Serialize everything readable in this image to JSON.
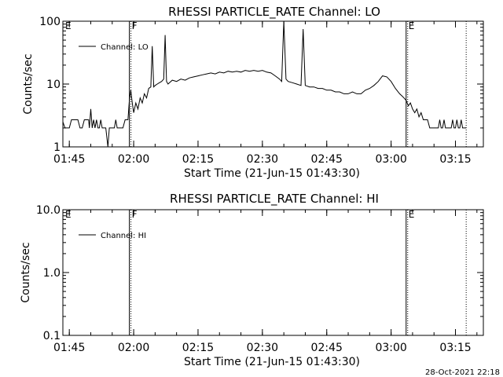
{
  "footer": {
    "timestamp": "28-Oct-2021 22:18"
  },
  "chart_data": [
    {
      "type": "line",
      "title": "RHESSI PARTICLE_RATE Channel: LO",
      "xlabel": "Start Time (21-Jun-15 01:43:30)",
      "ylabel": "Counts/sec",
      "yscale": "log",
      "xlim": [
        "01:43:30",
        "03:21:30"
      ],
      "ylim": [
        1,
        100
      ],
      "x_ticks": [
        "01:45",
        "02:00",
        "02:15",
        "02:30",
        "02:45",
        "03:00",
        "03:15"
      ],
      "y_ticks": [
        "1",
        "10",
        "100"
      ],
      "legend": {
        "placement": "top-left",
        "entries": [
          "Channel: LO"
        ]
      },
      "markers": [
        {
          "label": "E",
          "time": "01:43:30",
          "line": "none"
        },
        {
          "label": "F",
          "time": "01:59:00",
          "line": "solid"
        },
        {
          "label": "E",
          "time": "03:03:30",
          "line": "solid"
        },
        {
          "label": "",
          "time": "03:17:30",
          "line": "dotted"
        }
      ],
      "series": [
        {
          "name": "Channel: LO",
          "color": "#000000",
          "points": [
            [
              "01:43:30",
              2.5
            ],
            [
              "01:44:00",
              2.0
            ],
            [
              "01:45:00",
              2.0
            ],
            [
              "01:45:30",
              2.7
            ],
            [
              "01:47:00",
              2.7
            ],
            [
              "01:47:30",
              2.0
            ],
            [
              "01:48:00",
              2.0
            ],
            [
              "01:48:30",
              2.7
            ],
            [
              "01:49:30",
              2.7
            ],
            [
              "01:49:40",
              2.0
            ],
            [
              "01:50:00",
              4.0
            ],
            [
              "01:50:20",
              2.0
            ],
            [
              "01:50:40",
              2.7
            ],
            [
              "01:51:00",
              2.0
            ],
            [
              "01:51:20",
              2.7
            ],
            [
              "01:51:40",
              2.0
            ],
            [
              "01:52:00",
              2.0
            ],
            [
              "01:52:20",
              2.7
            ],
            [
              "01:52:40",
              2.0
            ],
            [
              "01:53:30",
              2.0
            ],
            [
              "01:54:00",
              1.0
            ],
            [
              "01:54:20",
              2.0
            ],
            [
              "01:55:30",
              2.0
            ],
            [
              "01:55:50",
              2.7
            ],
            [
              "01:56:10",
              2.0
            ],
            [
              "01:57:30",
              2.0
            ],
            [
              "01:58:00",
              2.7
            ],
            [
              "01:58:40",
              2.7
            ],
            [
              "01:59:00",
              5.5
            ],
            [
              "01:59:20",
              8.0
            ],
            [
              "01:59:40",
              5.0
            ],
            [
              "02:00:00",
              3.5
            ],
            [
              "02:00:30",
              5.0
            ],
            [
              "02:01:00",
              4.0
            ],
            [
              "02:01:30",
              6.0
            ],
            [
              "02:02:00",
              5.0
            ],
            [
              "02:02:30",
              7.0
            ],
            [
              "02:03:00",
              6.0
            ],
            [
              "02:03:30",
              8.5
            ],
            [
              "02:04:00",
              9.0
            ],
            [
              "02:04:20",
              40.0
            ],
            [
              "02:04:40",
              9.0
            ],
            [
              "02:05:00",
              9.5
            ],
            [
              "02:05:30",
              10.0
            ],
            [
              "02:06:00",
              10.5
            ],
            [
              "02:06:30",
              11.0
            ],
            [
              "02:07:00",
              12.0
            ],
            [
              "02:07:20",
              60.0
            ],
            [
              "02:07:40",
              11.0
            ],
            [
              "02:08:00",
              10.0
            ],
            [
              "02:09:00",
              11.5
            ],
            [
              "02:10:00",
              11.0
            ],
            [
              "02:11:00",
              12.0
            ],
            [
              "02:12:00",
              11.5
            ],
            [
              "02:13:00",
              12.5
            ],
            [
              "02:14:00",
              13.0
            ],
            [
              "02:15:00",
              13.5
            ],
            [
              "02:16:00",
              14.0
            ],
            [
              "02:17:00",
              14.5
            ],
            [
              "02:18:00",
              15.0
            ],
            [
              "02:19:00",
              14.5
            ],
            [
              "02:20:00",
              15.5
            ],
            [
              "02:21:00",
              15.0
            ],
            [
              "02:22:00",
              16.0
            ],
            [
              "02:23:00",
              15.5
            ],
            [
              "02:24:00",
              16.0
            ],
            [
              "02:25:00",
              15.5
            ],
            [
              "02:26:00",
              16.5
            ],
            [
              "02:27:00",
              16.0
            ],
            [
              "02:28:00",
              16.5
            ],
            [
              "02:29:00",
              16.0
            ],
            [
              "02:30:00",
              16.5
            ],
            [
              "02:31:00",
              15.5
            ],
            [
              "02:32:00",
              15.0
            ],
            [
              "02:33:00",
              13.5
            ],
            [
              "02:34:00",
              12.0
            ],
            [
              "02:34:30",
              11.0
            ],
            [
              "02:35:00",
              100.0
            ],
            [
              "02:35:30",
              12.0
            ],
            [
              "02:36:00",
              11.0
            ],
            [
              "02:37:00",
              10.5
            ],
            [
              "02:38:00",
              10.0
            ],
            [
              "02:39:00",
              9.5
            ],
            [
              "02:39:30",
              75.0
            ],
            [
              "02:40:00",
              9.5
            ],
            [
              "02:41:00",
              9.0
            ],
            [
              "02:42:00",
              9.0
            ],
            [
              "02:43:00",
              8.5
            ],
            [
              "02:44:00",
              8.5
            ],
            [
              "02:45:00",
              8.0
            ],
            [
              "02:46:00",
              8.0
            ],
            [
              "02:47:00",
              7.5
            ],
            [
              "02:48:00",
              7.5
            ],
            [
              "02:49:00",
              7.0
            ],
            [
              "02:50:00",
              7.0
            ],
            [
              "02:51:00",
              7.5
            ],
            [
              "02:52:00",
              7.0
            ],
            [
              "02:53:00",
              7.0
            ],
            [
              "02:54:00",
              8.0
            ],
            [
              "02:55:00",
              8.5
            ],
            [
              "02:56:00",
              9.5
            ],
            [
              "02:57:00",
              11.0
            ],
            [
              "02:58:00",
              13.5
            ],
            [
              "02:59:00",
              13.0
            ],
            [
              "03:00:00",
              11.0
            ],
            [
              "03:01:00",
              8.5
            ],
            [
              "03:02:00",
              7.0
            ],
            [
              "03:02:30",
              6.5
            ],
            [
              "03:03:00",
              6.0
            ],
            [
              "03:03:30",
              5.5
            ],
            [
              "03:04:00",
              4.5
            ],
            [
              "03:04:30",
              5.0
            ],
            [
              "03:05:00",
              4.0
            ],
            [
              "03:05:30",
              3.5
            ],
            [
              "03:06:00",
              4.0
            ],
            [
              "03:06:30",
              3.0
            ],
            [
              "03:07:00",
              3.5
            ],
            [
              "03:07:30",
              2.7
            ],
            [
              "03:08:30",
              2.7
            ],
            [
              "03:09:00",
              2.0
            ],
            [
              "03:11:00",
              2.0
            ],
            [
              "03:11:20",
              2.7
            ],
            [
              "03:11:40",
              2.0
            ],
            [
              "03:12:00",
              2.0
            ],
            [
              "03:12:20",
              2.7
            ],
            [
              "03:12:40",
              2.0
            ],
            [
              "03:14:00",
              2.0
            ],
            [
              "03:14:20",
              2.7
            ],
            [
              "03:14:40",
              2.0
            ],
            [
              "03:15:00",
              2.0
            ],
            [
              "03:15:20",
              2.7
            ],
            [
              "03:15:40",
              2.0
            ],
            [
              "03:16:00",
              2.0
            ],
            [
              "03:16:20",
              2.7
            ],
            [
              "03:16:40",
              2.0
            ],
            [
              "03:17:30",
              2.0
            ]
          ]
        }
      ]
    },
    {
      "type": "line",
      "title": "RHESSI PARTICLE_RATE Channel: HI",
      "xlabel": "Start Time (21-Jun-15 01:43:30)",
      "ylabel": "Counts/sec",
      "yscale": "log",
      "xlim": [
        "01:43:30",
        "03:21:30"
      ],
      "ylim": [
        0.1,
        10
      ],
      "x_ticks": [
        "01:45",
        "02:00",
        "02:15",
        "02:30",
        "02:45",
        "03:00",
        "03:15"
      ],
      "y_ticks": [
        "0.1",
        "1.0",
        "10.0"
      ],
      "legend": {
        "placement": "top-left",
        "entries": [
          "Channel: HI"
        ]
      },
      "markers": [
        {
          "label": "E",
          "time": "01:43:30",
          "line": "none"
        },
        {
          "label": "F",
          "time": "01:59:00",
          "line": "solid"
        },
        {
          "label": "E",
          "time": "03:03:30",
          "line": "solid"
        },
        {
          "label": "",
          "time": "03:17:30",
          "line": "dotted"
        }
      ],
      "series": [
        {
          "name": "Channel: HI",
          "color": "#000000",
          "points": []
        }
      ]
    }
  ]
}
